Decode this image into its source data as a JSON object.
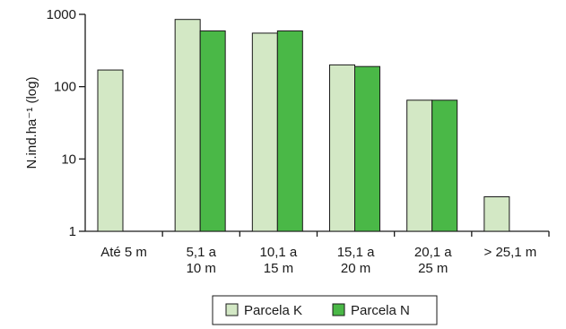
{
  "chart_data": {
    "type": "bar",
    "scale": "log",
    "ylabel": "N.ind.ha⁻¹ (log)",
    "xlabel": "",
    "title": "",
    "ylim": [
      1,
      1000
    ],
    "yticks": [
      "1",
      "10",
      "100",
      "1000"
    ],
    "grid": false,
    "legend": "bottom-center",
    "categories": [
      [
        "Até 5 m"
      ],
      [
        "5,1 a",
        "10 m"
      ],
      [
        "10,1 a",
        "15 m"
      ],
      [
        "15,1 a",
        "20 m"
      ],
      [
        "20,1 a",
        "25 m"
      ],
      [
        "> 25,1 m"
      ]
    ],
    "series": [
      {
        "name": "Parcela K",
        "color": "#d3e8c5",
        "values": [
          170,
          850,
          550,
          200,
          65,
          3
        ]
      },
      {
        "name": "Parcela N",
        "color": "#4ab847",
        "values": [
          null,
          590,
          590,
          190,
          65,
          null
        ]
      }
    ]
  }
}
